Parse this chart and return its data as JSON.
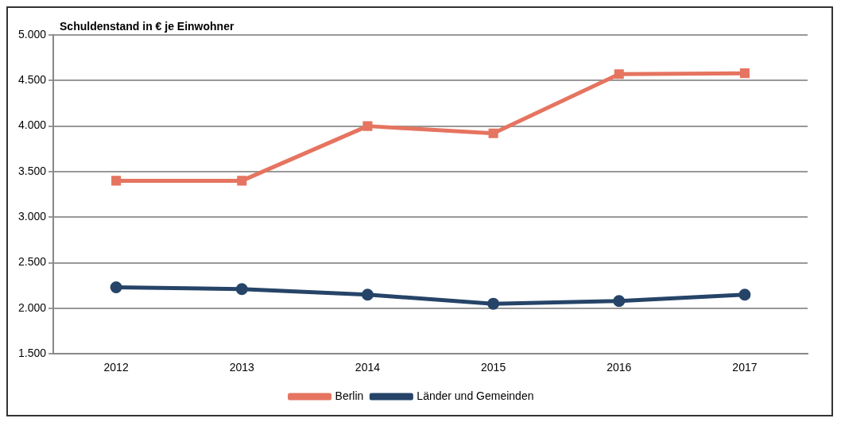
{
  "chart_data": {
    "type": "line",
    "ylabel": "Schuldenstand in € je Einwohner",
    "categories": [
      "2012",
      "2013",
      "2014",
      "2015",
      "2016",
      "2017"
    ],
    "series": [
      {
        "name": "Berlin",
        "color": "#e57460",
        "marker": "square",
        "values": [
          3400,
          3400,
          4000,
          3920,
          4570,
          4580
        ]
      },
      {
        "name": "Länder und Gemeinden",
        "color": "#264468",
        "marker": "circle",
        "values": [
          2230,
          2210,
          2150,
          2050,
          2080,
          2150
        ]
      }
    ],
    "ylim": [
      1500,
      5000
    ],
    "yticks": [
      {
        "value": 1500,
        "label": "1.500"
      },
      {
        "value": 2000,
        "label": "2.000"
      },
      {
        "value": 2500,
        "label": "2.500"
      },
      {
        "value": 3000,
        "label": "3.000"
      },
      {
        "value": 3500,
        "label": "3.500"
      },
      {
        "value": 4000,
        "label": "4.000"
      },
      {
        "value": 4500,
        "label": "4.500"
      },
      {
        "value": 5000,
        "label": "5.000"
      }
    ],
    "grid": "y",
    "legend": "bottom",
    "line_style": "solid"
  }
}
